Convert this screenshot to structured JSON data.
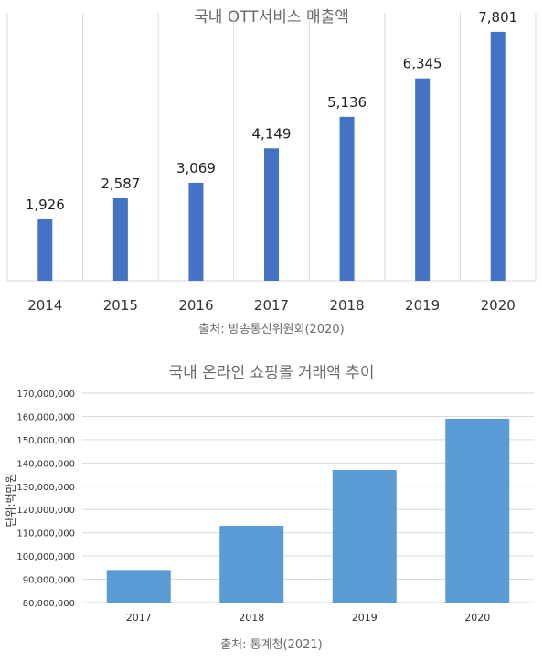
{
  "chart_data": [
    {
      "type": "bar",
      "title": "국내 OTT서비스 매출액",
      "categories": [
        "2014",
        "2015",
        "2016",
        "2017",
        "2018",
        "2019",
        "2020"
      ],
      "values": [
        1926,
        2587,
        3069,
        4149,
        5136,
        6345,
        7801
      ],
      "value_labels": [
        "1,926",
        "2,587",
        "3,069",
        "4,149",
        "5,136",
        "6,345",
        "7,801"
      ],
      "ylim": [
        0,
        8400
      ],
      "grid": "vertical",
      "bar_color": "#4472c4",
      "source": "출처: 방송통신위원회(2020)"
    },
    {
      "type": "bar",
      "title": "국내 온라인 쇼핑몰 거래액 추이",
      "categories": [
        "2017",
        "2018",
        "2019",
        "2020"
      ],
      "values": [
        94000000,
        113000000,
        137000000,
        159000000
      ],
      "ylabel": "단위:백만원",
      "ylim": [
        80000000,
        170000000
      ],
      "yticks": [
        "170,000,000",
        "160,000,000",
        "150,000,000",
        "140,000,000",
        "130,000,000",
        "120,000,000",
        "110,000,000",
        "100,000,000",
        "90,000,000",
        "80,000,000"
      ],
      "grid": "horizontal",
      "bar_color": "#5b9bd5",
      "source": "출처: 통계청(2021)"
    }
  ]
}
